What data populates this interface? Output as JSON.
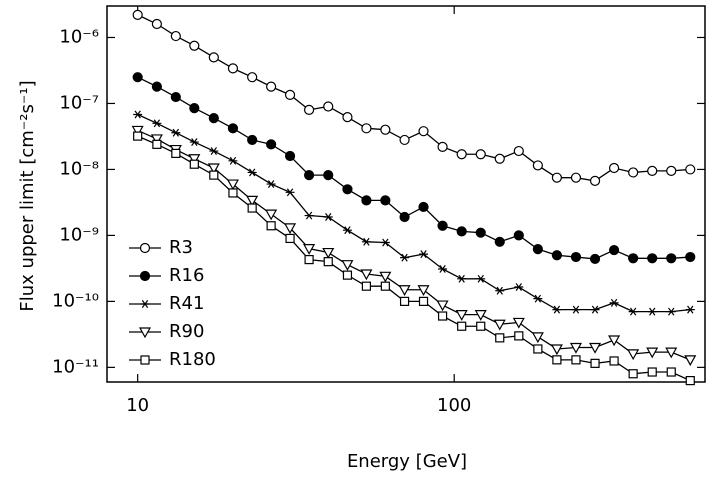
{
  "chart_data": {
    "type": "line",
    "xlabel": "Energy [GeV]",
    "ylabel": "Flux upper limit [cm⁻²s⁻¹]",
    "xscale": "log",
    "yscale": "log",
    "xlim": [
      8,
      620
    ],
    "ylim": [
      6e-12,
      3e-06
    ],
    "xticks": [
      10,
      100
    ],
    "yticks": [
      {
        "value": 1e-06,
        "label": "10⁻⁶"
      },
      {
        "value": 1e-07,
        "label": "10⁻⁷"
      },
      {
        "value": 1e-08,
        "label": "10⁻⁸"
      },
      {
        "value": 1e-09,
        "label": "10⁻⁹"
      },
      {
        "value": 1e-10,
        "label": "10⁻¹⁰"
      },
      {
        "value": 1e-11,
        "label": "10⁻¹¹"
      }
    ],
    "legend": "lower left",
    "x": [
      10,
      11.5,
      13.2,
      15.1,
      17.4,
      20,
      23,
      26.4,
      30.3,
      34.8,
      40,
      46,
      52.8,
      60.6,
      69.7,
      80,
      91.9,
      105.6,
      121.3,
      139.3,
      160,
      183.8,
      211.1,
      242.5,
      278.6,
      320,
      367.6,
      422.3,
      485,
      557
    ],
    "series": [
      {
        "name": "R3",
        "color": "#000000",
        "marker": "circle-open",
        "values": [
          2.2e-06,
          1.6e-06,
          1.05e-06,
          7.5e-07,
          5e-07,
          3.4e-07,
          2.5e-07,
          1.8e-07,
          1.35e-07,
          8e-08,
          9e-08,
          6.2e-08,
          4.2e-08,
          4e-08,
          2.8e-08,
          3.8e-08,
          2.2e-08,
          1.7e-08,
          1.7e-08,
          1.45e-08,
          1.9e-08,
          1.15e-08,
          7.5e-09,
          7.5e-09,
          6.7e-09,
          1.05e-08,
          9e-09,
          9.5e-09,
          9.5e-09,
          1e-08
        ]
      },
      {
        "name": "R16",
        "color": "#000000",
        "marker": "circle-filled",
        "values": [
          2.5e-07,
          1.8e-07,
          1.25e-07,
          8.5e-08,
          6e-08,
          4.2e-08,
          2.8e-08,
          2.4e-08,
          1.6e-08,
          8.2e-09,
          8.2e-09,
          5e-09,
          3.4e-09,
          3.4e-09,
          1.9e-09,
          2.7e-09,
          1.4e-09,
          1.15e-09,
          1.1e-09,
          8e-10,
          1e-09,
          6.2e-10,
          5e-10,
          4.7e-10,
          4.4e-10,
          6e-10,
          4.5e-10,
          4.5e-10,
          4.5e-10,
          4.7e-10
        ]
      },
      {
        "name": "R41",
        "color": "#000000",
        "marker": "asterisk",
        "values": [
          6.8e-08,
          5e-08,
          3.6e-08,
          2.6e-08,
          1.9e-08,
          1.35e-08,
          9e-09,
          6e-09,
          4.5e-09,
          2e-09,
          1.9e-09,
          1.2e-09,
          8e-10,
          7.8e-10,
          4.6e-10,
          5.2e-10,
          3.1e-10,
          2.2e-10,
          2.2e-10,
          1.45e-10,
          1.65e-10,
          1.1e-10,
          7.5e-11,
          7.5e-11,
          7.5e-11,
          9.5e-11,
          7e-11,
          7e-11,
          7e-11,
          7.5e-11
        ]
      },
      {
        "name": "R90",
        "color": "#000000",
        "marker": "triangle-down",
        "values": [
          3.9e-08,
          2.9e-08,
          2e-08,
          1.45e-08,
          1.05e-08,
          6e-09,
          3.4e-09,
          2.1e-09,
          1.3e-09,
          6.3e-10,
          5.5e-10,
          3.6e-10,
          2.6e-10,
          2.4e-10,
          1.5e-10,
          1.5e-10,
          8.8e-11,
          6.3e-11,
          6.3e-11,
          4.5e-11,
          4.8e-11,
          2.9e-11,
          1.9e-11,
          2e-11,
          2e-11,
          2.6e-11,
          1.6e-11,
          1.7e-11,
          1.7e-11,
          1.3e-11
        ]
      },
      {
        "name": "R180",
        "color": "#000000",
        "marker": "square",
        "values": [
          3.2e-08,
          2.4e-08,
          1.75e-08,
          1.2e-08,
          8.2e-09,
          4.4e-09,
          2.6e-09,
          1.4e-09,
          9e-10,
          4.3e-10,
          4e-10,
          2.5e-10,
          1.7e-10,
          1.7e-10,
          1e-10,
          1e-10,
          6e-11,
          4.2e-11,
          4.2e-11,
          2.8e-11,
          3e-11,
          1.9e-11,
          1.3e-11,
          1.3e-11,
          1.15e-11,
          1.25e-11,
          8e-12,
          8.5e-12,
          8.5e-12,
          6.3e-12
        ]
      }
    ]
  }
}
